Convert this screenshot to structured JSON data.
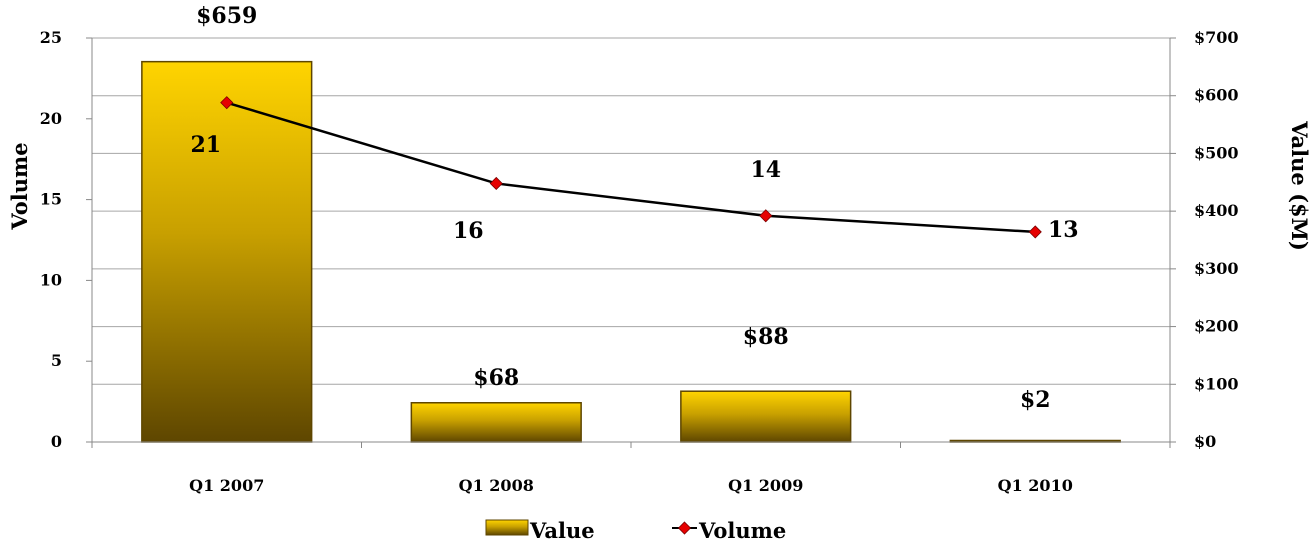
{
  "chart_data": {
    "type": "bar",
    "categories": [
      "Q1 2007",
      "Q1 2008",
      "Q1 2009",
      "Q1 2010"
    ],
    "series": [
      {
        "name": "Value",
        "type": "bar",
        "axis": "right",
        "values": [
          659,
          68,
          88,
          2
        ],
        "labels": [
          "$659",
          "$68",
          "$88",
          "$2"
        ],
        "color": "#C9A400"
      },
      {
        "name": "Volume",
        "type": "line",
        "axis": "left",
        "values": [
          21,
          16,
          14,
          13
        ],
        "labels": [
          "21",
          "16",
          "14",
          "13"
        ],
        "color": "#000000",
        "marker_color": "#E60000"
      }
    ],
    "ylabel": "Volume",
    "ylim": [
      0,
      25
    ],
    "yticks": [
      "0",
      "5",
      "10",
      "15",
      "20",
      "25"
    ],
    "y2label": "Value ($M)",
    "y2lim": [
      0,
      700
    ],
    "y2ticks": [
      "$0",
      "$100",
      "$200",
      "$300",
      "$400",
      "$500",
      "$600",
      "$700"
    ],
    "grid": true,
    "legend": "bottom"
  }
}
